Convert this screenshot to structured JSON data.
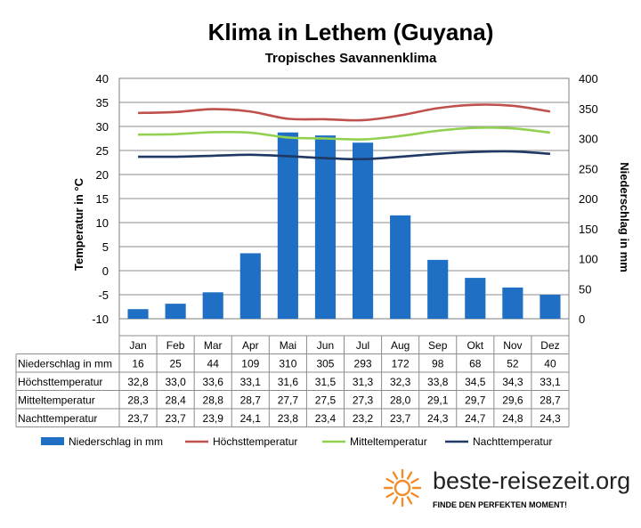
{
  "chart_data": {
    "type": "bar",
    "title": "Klima in Lethem (Guyana)",
    "subtitle": "Tropisches Savannenklima",
    "ylabel": "Temperatur in °C",
    "y2label": "Niederschlag in mm",
    "ylim": [
      -10,
      40
    ],
    "y2lim": [
      0,
      400
    ],
    "y_ticks": [
      "40",
      "35",
      "30",
      "25",
      "20",
      "15",
      "10",
      "5",
      "0",
      "-5",
      "-10"
    ],
    "y2_ticks": [
      "400",
      "350",
      "300",
      "250",
      "200",
      "150",
      "100",
      "50",
      "0"
    ],
    "grid": true,
    "legend_position": "bottom",
    "categories": [
      "Jan",
      "Feb",
      "Mar",
      "Apr",
      "Mai",
      "Jun",
      "Jul",
      "Aug",
      "Sep",
      "Okt",
      "Nov",
      "Dez"
    ],
    "series": [
      {
        "name": "Niederschlag in mm",
        "type": "bar",
        "axis": "right",
        "color": "#1f6fc4",
        "values": [
          16,
          25,
          44,
          109,
          310,
          305,
          293,
          172,
          98,
          68,
          52,
          40
        ],
        "display": [
          "16",
          "25",
          "44",
          "109",
          "310",
          "305",
          "293",
          "172",
          "98",
          "68",
          "52",
          "40"
        ]
      },
      {
        "name": "Höchsttemperatur",
        "type": "line",
        "axis": "left",
        "color": "#c0504d",
        "values": [
          32.8,
          33.0,
          33.6,
          33.1,
          31.6,
          31.5,
          31.3,
          32.3,
          33.8,
          34.5,
          34.3,
          33.1
        ],
        "display": [
          "32,8",
          "33,0",
          "33,6",
          "33,1",
          "31,6",
          "31,5",
          "31,3",
          "32,3",
          "33,8",
          "34,5",
          "34,3",
          "33,1"
        ]
      },
      {
        "name": "Mitteltemperatur",
        "type": "line",
        "axis": "left",
        "color": "#92d050",
        "values": [
          28.3,
          28.4,
          28.8,
          28.7,
          27.7,
          27.5,
          27.3,
          28.0,
          29.1,
          29.7,
          29.6,
          28.7
        ],
        "display": [
          "28,3",
          "28,4",
          "28,8",
          "28,7",
          "27,7",
          "27,5",
          "27,3",
          "28,0",
          "29,1",
          "29,7",
          "29,6",
          "28,7"
        ]
      },
      {
        "name": "Nachttemperatur",
        "type": "line",
        "axis": "left",
        "color": "#1f3864",
        "values": [
          23.7,
          23.7,
          23.9,
          24.1,
          23.8,
          23.4,
          23.2,
          23.7,
          24.3,
          24.7,
          24.8,
          24.3
        ],
        "display": [
          "23,7",
          "23,7",
          "23,9",
          "24,1",
          "23,8",
          "23,4",
          "23,2",
          "23,7",
          "24,3",
          "24,7",
          "24,8",
          "24,3"
        ]
      }
    ],
    "table_rows": [
      {
        "label": "Niederschlag in mm",
        "series_index": 0
      },
      {
        "label": "Höchsttemperatur",
        "series_index": 1
      },
      {
        "label": "Mitteltemperatur",
        "series_index": 2
      },
      {
        "label": "Nachttemperatur",
        "series_index": 3
      }
    ]
  },
  "branding": {
    "site": "beste-reisezeit.org",
    "tagline": "FINDE DEN PERFEKTEN MOMENT!",
    "logo_icon": "sun-icon",
    "logo_color": "#f28c28"
  }
}
